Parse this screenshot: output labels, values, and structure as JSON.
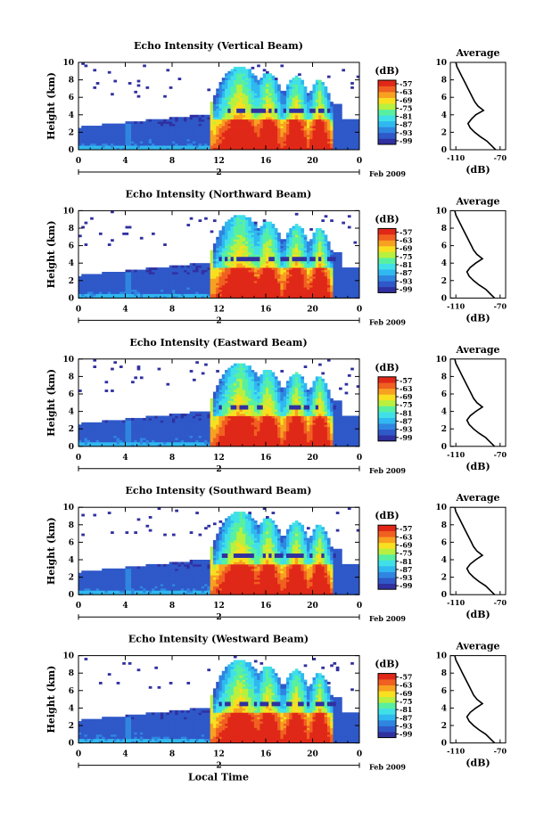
{
  "chart_data": [
    {
      "type": "heatmap",
      "title": "Echo Intensity (Vertical Beam)",
      "ylabel": "Height (km)",
      "x_ticks": [
        "0",
        "4",
        "8",
        "12",
        "16",
        "20",
        "0"
      ],
      "y_ticks": [
        "0",
        "2",
        "4",
        "6",
        "8",
        "10"
      ],
      "xlim": [
        0,
        24
      ],
      "ylim": [
        0,
        10
      ],
      "date_day": "2",
      "date_label": "Feb 2009",
      "colorbar": {
        "unit": "(dB)",
        "ticks": [
          "-57",
          "-63",
          "-69",
          "-75",
          "-81",
          "-87",
          "-93",
          "-99"
        ]
      },
      "average": {
        "title": "Average",
        "xlabel": "(dB)",
        "x_ticks": [
          "-110",
          "-70"
        ],
        "xlim": [
          -115,
          -65
        ],
        "height": [
          0,
          0.5,
          1,
          1.5,
          2,
          2.5,
          3,
          3.5,
          4,
          4.5,
          5,
          5.5,
          6,
          6.5,
          7,
          7.5,
          8,
          8.5,
          9,
          9.5,
          10
        ],
        "db": [
          -74,
          -78,
          -82,
          -88,
          -93,
          -97,
          -99,
          -96,
          -92,
          -85,
          -90,
          -93,
          -95,
          -97,
          -99,
          -101,
          -103,
          -105,
          -107,
          -109,
          -110
        ]
      }
    },
    {
      "type": "heatmap",
      "title": "Echo Intensity (Northward Beam)",
      "ylabel": "Height (km)",
      "x_ticks": [
        "0",
        "4",
        "8",
        "12",
        "16",
        "20",
        "0"
      ],
      "y_ticks": [
        "0",
        "2",
        "4",
        "6",
        "8",
        "10"
      ],
      "xlim": [
        0,
        24
      ],
      "ylim": [
        0,
        10
      ],
      "date_day": "2",
      "date_label": "Feb 2009",
      "colorbar": {
        "unit": "(dB)",
        "ticks": [
          "-57",
          "-63",
          "-69",
          "-75",
          "-81",
          "-87",
          "-93",
          "-99"
        ]
      },
      "average": {
        "title": "Average",
        "xlabel": "(dB)",
        "x_ticks": [
          "-110",
          "-70"
        ],
        "xlim": [
          -115,
          -65
        ],
        "height": [
          0,
          0.5,
          1,
          1.5,
          2,
          2.5,
          3,
          3.5,
          4,
          4.5,
          5,
          5.5,
          6,
          6.5,
          7,
          7.5,
          8,
          8.5,
          9,
          9.5,
          10
        ],
        "db": [
          -75,
          -79,
          -83,
          -89,
          -94,
          -98,
          -100,
          -97,
          -92,
          -86,
          -91,
          -94,
          -96,
          -98,
          -100,
          -102,
          -104,
          -106,
          -108,
          -110,
          -111
        ]
      }
    },
    {
      "type": "heatmap",
      "title": "Echo Intensity (Eastward Beam)",
      "ylabel": "Height (km)",
      "x_ticks": [
        "0",
        "4",
        "8",
        "12",
        "16",
        "20",
        "0"
      ],
      "y_ticks": [
        "0",
        "2",
        "4",
        "6",
        "8",
        "10"
      ],
      "xlim": [
        0,
        24
      ],
      "ylim": [
        0,
        10
      ],
      "date_day": "2",
      "date_label": "Feb 2009",
      "colorbar": {
        "unit": "(dB)",
        "ticks": [
          "-57",
          "-63",
          "-69",
          "-75",
          "-81",
          "-87",
          "-93",
          "-99"
        ]
      },
      "average": {
        "title": "Average",
        "xlabel": "(dB)",
        "x_ticks": [
          "-110",
          "-70"
        ],
        "xlim": [
          -115,
          -65
        ],
        "height": [
          0,
          0.5,
          1,
          1.5,
          2,
          2.5,
          3,
          3.5,
          4,
          4.5,
          5,
          5.5,
          6,
          6.5,
          7,
          7.5,
          8,
          8.5,
          9,
          9.5,
          10
        ],
        "db": [
          -75,
          -79,
          -83,
          -89,
          -94,
          -98,
          -100,
          -97,
          -92,
          -86,
          -91,
          -94,
          -96,
          -98,
          -100,
          -102,
          -104,
          -106,
          -108,
          -110,
          -111
        ]
      }
    },
    {
      "type": "heatmap",
      "title": "Echo Intensity (Southward Beam)",
      "ylabel": "Height (km)",
      "x_ticks": [
        "0",
        "4",
        "8",
        "12",
        "16",
        "20",
        "0"
      ],
      "y_ticks": [
        "0",
        "2",
        "4",
        "6",
        "8",
        "10"
      ],
      "xlim": [
        0,
        24
      ],
      "ylim": [
        0,
        10
      ],
      "date_day": "2",
      "date_label": "Feb 2009",
      "colorbar": {
        "unit": "(dB)",
        "ticks": [
          "-57",
          "-63",
          "-69",
          "-75",
          "-81",
          "-87",
          "-93",
          "-99"
        ]
      },
      "average": {
        "title": "Average",
        "xlabel": "(dB)",
        "x_ticks": [
          "-110",
          "-70"
        ],
        "xlim": [
          -115,
          -65
        ],
        "height": [
          0,
          0.5,
          1,
          1.5,
          2,
          2.5,
          3,
          3.5,
          4,
          4.5,
          5,
          5.5,
          6,
          6.5,
          7,
          7.5,
          8,
          8.5,
          9,
          9.5,
          10
        ],
        "db": [
          -75,
          -79,
          -83,
          -89,
          -94,
          -98,
          -100,
          -97,
          -92,
          -86,
          -91,
          -94,
          -96,
          -98,
          -100,
          -102,
          -104,
          -106,
          -108,
          -110,
          -111
        ]
      }
    },
    {
      "type": "heatmap",
      "title": "Echo Intensity (Westward Beam)",
      "ylabel": "Height (km)",
      "xlabel": "Local Time",
      "x_ticks": [
        "0",
        "4",
        "8",
        "12",
        "16",
        "20",
        "0"
      ],
      "y_ticks": [
        "0",
        "2",
        "4",
        "6",
        "8",
        "10"
      ],
      "xlim": [
        0,
        24
      ],
      "ylim": [
        0,
        10
      ],
      "date_day": "2",
      "date_label": "Feb 2009",
      "colorbar": {
        "unit": "(dB)",
        "ticks": [
          "-57",
          "-63",
          "-69",
          "-75",
          "-81",
          "-87",
          "-93",
          "-99"
        ]
      },
      "average": {
        "title": "Average",
        "xlabel": "(dB)",
        "x_ticks": [
          "-110",
          "-70"
        ],
        "xlim": [
          -115,
          -65
        ],
        "height": [
          0,
          0.5,
          1,
          1.5,
          2,
          2.5,
          3,
          3.5,
          4,
          4.5,
          5,
          5.5,
          6,
          6.5,
          7,
          7.5,
          8,
          8.5,
          9,
          9.5,
          10
        ],
        "db": [
          -75,
          -79,
          -83,
          -89,
          -94,
          -98,
          -100,
          -97,
          -92,
          -86,
          -91,
          -94,
          -96,
          -98,
          -100,
          -102,
          -104,
          -106,
          -108,
          -110,
          -111
        ]
      }
    }
  ],
  "colormap": [
    "#3030a0",
    "#2f58c8",
    "#2f86e0",
    "#30b8f0",
    "#40e0e8",
    "#58f0a0",
    "#b8f040",
    "#f8e020",
    "#f8a020",
    "#f06020",
    "#e02818"
  ]
}
